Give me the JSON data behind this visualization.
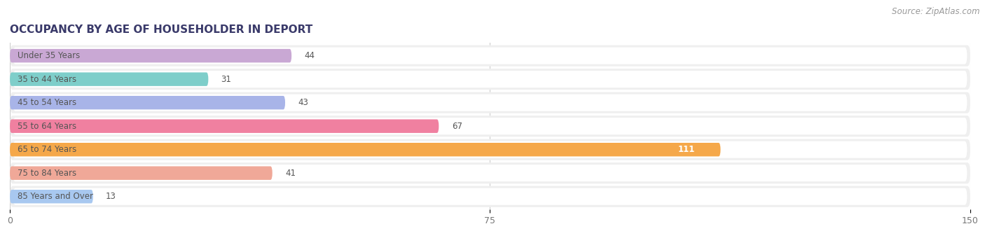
{
  "title": "OCCUPANCY BY AGE OF HOUSEHOLDER IN DEPORT",
  "source": "Source: ZipAtlas.com",
  "categories": [
    "Under 35 Years",
    "35 to 44 Years",
    "45 to 54 Years",
    "55 to 64 Years",
    "65 to 74 Years",
    "75 to 84 Years",
    "85 Years and Over"
  ],
  "values": [
    44,
    31,
    43,
    67,
    111,
    41,
    13
  ],
  "bar_colors": [
    "#c9a8d4",
    "#7ececa",
    "#a8b4e8",
    "#f080a0",
    "#f5a84a",
    "#f0a898",
    "#a8c8f0"
  ],
  "xlim": [
    0,
    150
  ],
  "xticks": [
    0,
    75,
    150
  ],
  "figure_bg": "#ffffff",
  "row_bg_color": "#efefef",
  "bar_bg_color": "#ffffff",
  "grid_color": "#cccccc",
  "title_color": "#3a3a6a",
  "label_color": "#555555",
  "value_color_dark": "#555555",
  "value_color_light": "#ffffff",
  "title_fontsize": 11,
  "source_fontsize": 8.5,
  "label_fontsize": 8.5,
  "value_fontsize": 8.5
}
